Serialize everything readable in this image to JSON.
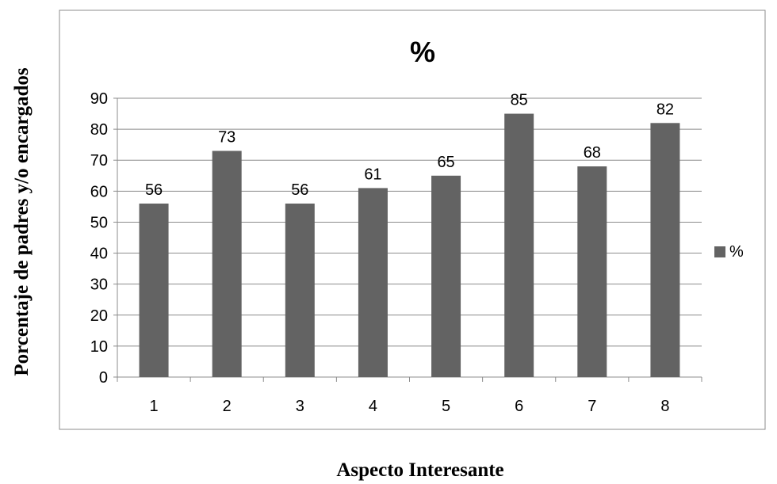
{
  "chart_data": {
    "type": "bar",
    "title": "%",
    "xlabel": "Aspecto Interesante",
    "ylabel": "Porcentaje de padres y/o encargados",
    "categories": [
      "1",
      "2",
      "3",
      "4",
      "5",
      "6",
      "7",
      "8"
    ],
    "series": [
      {
        "name": "%",
        "values": [
          56,
          73,
          56,
          61,
          65,
          85,
          68,
          82
        ]
      }
    ],
    "ylim": [
      0,
      90
    ],
    "yticks": [
      0,
      10,
      20,
      30,
      40,
      50,
      60,
      70,
      80,
      90
    ],
    "grid": true,
    "legend": "right",
    "data_labels": true,
    "colors": {
      "bar": "#636363",
      "grid": "#8c8c8c",
      "frame": "#8c8c8c"
    }
  }
}
